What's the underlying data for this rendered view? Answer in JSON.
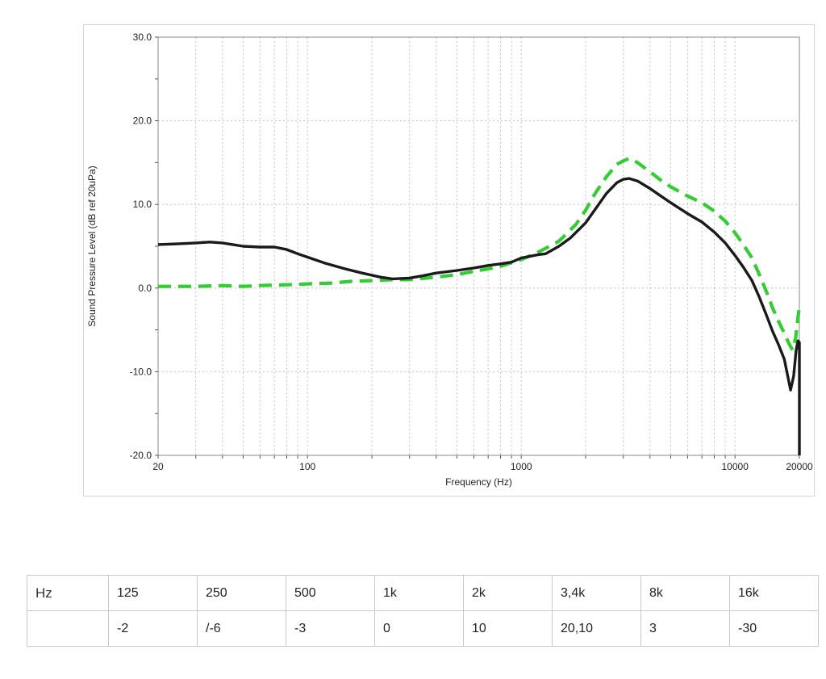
{
  "chart_data": {
    "type": "line",
    "title": "",
    "xlabel": "Frequency (Hz)",
    "ylabel": "Sound Pressure Level (dB ref 20uPa)",
    "x_scale": "log",
    "xlim": [
      20,
      20000
    ],
    "ylim": [
      -20,
      30
    ],
    "grid": true,
    "x_ticks": [
      {
        "value": 20,
        "label": "20"
      },
      {
        "value": 100,
        "label": "100"
      },
      {
        "value": 1000,
        "label": "1000"
      },
      {
        "value": 10000,
        "label": "10000"
      },
      {
        "value": 20000,
        "label": "20000"
      }
    ],
    "y_ticks": [
      {
        "value": 30,
        "label": "30.0"
      },
      {
        "value": 20,
        "label": "20.0"
      },
      {
        "value": 10,
        "label": "10.0"
      },
      {
        "value": 0,
        "label": "0.0"
      },
      {
        "value": -10,
        "label": "-10.0"
      },
      {
        "value": -20,
        "label": "-20.0"
      }
    ],
    "colors": {
      "grid": "#c4c4c4",
      "plot_border": "#8a8a8a",
      "tick": "#555555",
      "label": "#222222"
    },
    "series": [
      {
        "name": "green-dashed-response",
        "color": "#33cc33",
        "style": "dashed",
        "width": 4.2,
        "points": [
          [
            20,
            0.2
          ],
          [
            30,
            0.2
          ],
          [
            40,
            0.3
          ],
          [
            50,
            0.2
          ],
          [
            60,
            0.3
          ],
          [
            80,
            0.4
          ],
          [
            100,
            0.5
          ],
          [
            130,
            0.6
          ],
          [
            160,
            0.8
          ],
          [
            200,
            0.9
          ],
          [
            250,
            1.0
          ],
          [
            300,
            1.0
          ],
          [
            400,
            1.3
          ],
          [
            500,
            1.6
          ],
          [
            600,
            2.0
          ],
          [
            700,
            2.3
          ],
          [
            800,
            2.6
          ],
          [
            1000,
            3.4
          ],
          [
            1200,
            4.3
          ],
          [
            1500,
            5.6
          ],
          [
            1800,
            7.6
          ],
          [
            2000,
            9.3
          ],
          [
            2200,
            11.2
          ],
          [
            2500,
            13.3
          ],
          [
            2800,
            14.8
          ],
          [
            3000,
            15.2
          ],
          [
            3200,
            15.5
          ],
          [
            3500,
            15.0
          ],
          [
            4000,
            13.9
          ],
          [
            4500,
            12.9
          ],
          [
            5000,
            12.1
          ],
          [
            6000,
            11.0
          ],
          [
            7000,
            10.2
          ],
          [
            8000,
            9.2
          ],
          [
            9000,
            8.0
          ],
          [
            10000,
            6.6
          ],
          [
            11000,
            5.1
          ],
          [
            12000,
            3.6
          ],
          [
            13000,
            1.6
          ],
          [
            14000,
            -0.4
          ],
          [
            15000,
            -2.4
          ],
          [
            16000,
            -4.0
          ],
          [
            17000,
            -5.4
          ],
          [
            18000,
            -6.8
          ],
          [
            18600,
            -7.4
          ],
          [
            19200,
            -6.0
          ],
          [
            19600,
            -4.0
          ],
          [
            20000,
            -2.2
          ]
        ]
      },
      {
        "name": "black-solid-response",
        "color": "#1a1a1a",
        "style": "solid",
        "width": 3.4,
        "points": [
          [
            20,
            5.2
          ],
          [
            25,
            5.3
          ],
          [
            30,
            5.4
          ],
          [
            35,
            5.5
          ],
          [
            40,
            5.4
          ],
          [
            50,
            5.0
          ],
          [
            60,
            4.9
          ],
          [
            70,
            4.9
          ],
          [
            80,
            4.6
          ],
          [
            90,
            4.1
          ],
          [
            100,
            3.7
          ],
          [
            120,
            3.0
          ],
          [
            150,
            2.3
          ],
          [
            180,
            1.8
          ],
          [
            220,
            1.3
          ],
          [
            250,
            1.1
          ],
          [
            300,
            1.2
          ],
          [
            350,
            1.5
          ],
          [
            400,
            1.8
          ],
          [
            500,
            2.1
          ],
          [
            600,
            2.4
          ],
          [
            700,
            2.7
          ],
          [
            800,
            2.9
          ],
          [
            900,
            3.1
          ],
          [
            1000,
            3.6
          ],
          [
            1100,
            3.8
          ],
          [
            1200,
            4.0
          ],
          [
            1300,
            4.1
          ],
          [
            1500,
            5.0
          ],
          [
            1700,
            6.0
          ],
          [
            2000,
            7.8
          ],
          [
            2200,
            9.3
          ],
          [
            2500,
            11.3
          ],
          [
            2800,
            12.6
          ],
          [
            3000,
            13.0
          ],
          [
            3200,
            13.1
          ],
          [
            3500,
            12.8
          ],
          [
            4000,
            11.9
          ],
          [
            4500,
            11.0
          ],
          [
            5000,
            10.2
          ],
          [
            6000,
            8.9
          ],
          [
            7000,
            7.9
          ],
          [
            8000,
            6.7
          ],
          [
            9000,
            5.4
          ],
          [
            10000,
            3.9
          ],
          [
            11000,
            2.4
          ],
          [
            12000,
            0.9
          ],
          [
            13000,
            -1.1
          ],
          [
            14000,
            -3.2
          ],
          [
            15000,
            -5.2
          ],
          [
            16000,
            -6.8
          ],
          [
            17000,
            -8.5
          ],
          [
            17800,
            -11.0
          ],
          [
            18200,
            -12.2
          ],
          [
            18800,
            -10.5
          ],
          [
            19300,
            -7.5
          ],
          [
            19700,
            -6.3
          ],
          [
            20000,
            -6.5
          ],
          [
            20000,
            -20
          ]
        ]
      }
    ]
  },
  "table": {
    "header": [
      "Hz",
      "125",
      "250",
      "500",
      "1k",
      "2k",
      "3,4k",
      "8k",
      "16k"
    ],
    "values": [
      "",
      "-2",
      "/-6",
      "-3",
      "0",
      "10",
      "20,10",
      "3",
      "-30"
    ]
  }
}
